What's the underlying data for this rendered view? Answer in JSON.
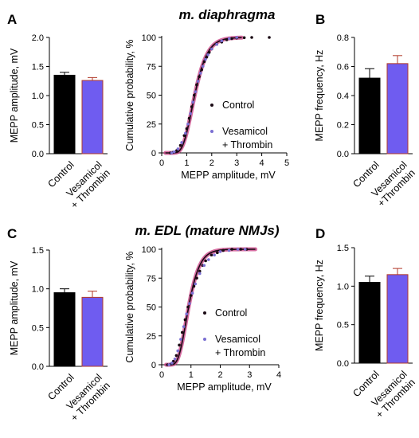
{
  "panels": {
    "A": {
      "letter": "A"
    },
    "B": {
      "letter": "B"
    },
    "C": {
      "letter": "C"
    },
    "D": {
      "letter": "D"
    }
  },
  "colors": {
    "control": "#000000",
    "vt_fill": "#6f5cf0",
    "vt_edge": "#b23a2a",
    "vt_point": "#7a6fd2",
    "control_point": "#1a0a14",
    "cdf_line": "#c83c82"
  },
  "chart_data": [
    {
      "id": "A",
      "type": "bar",
      "categories": [
        "Control",
        "Vesamicol + Thrombin"
      ],
      "category_lines": [
        [
          "Control"
        ],
        [
          "Vesamicol",
          "+ Thrombin"
        ]
      ],
      "values": [
        1.35,
        1.26
      ],
      "errors": [
        0.05,
        0.05
      ],
      "ylabel": "MEPP amplitude, mV",
      "ylim": [
        0,
        2.0
      ],
      "yticks": [
        0,
        0.5,
        1.0,
        1.5,
        2.0
      ],
      "yticklabels": [
        "0.0",
        "0.5",
        "1.0",
        "1.5",
        "2.0"
      ]
    },
    {
      "id": "B",
      "type": "bar",
      "categories": [
        "Control",
        "Vesamicol +Thrombin"
      ],
      "category_lines": [
        [
          "Control"
        ],
        [
          "Vesamicol",
          "+Thrombin"
        ]
      ],
      "values": [
        0.52,
        0.62
      ],
      "errors": [
        0.065,
        0.055
      ],
      "ylabel": "MEPP frequency, Hz",
      "ylim": [
        0,
        0.8
      ],
      "yticks": [
        0,
        0.2,
        0.4,
        0.6,
        0.8
      ],
      "yticklabels": [
        "0.0",
        "0.2",
        "0.4",
        "0.6",
        "0.8"
      ]
    },
    {
      "id": "C",
      "type": "bar",
      "categories": [
        "Control",
        "Vesamicol + Thrombin"
      ],
      "category_lines": [
        [
          "Control"
        ],
        [
          "Vesamicol",
          "+ Thrombin"
        ]
      ],
      "values": [
        0.95,
        0.89
      ],
      "errors": [
        0.05,
        0.08
      ],
      "ylabel": "MEPP amplitude, mV",
      "ylim": [
        0,
        1.5
      ],
      "yticks": [
        0,
        0.5,
        1.0,
        1.5
      ],
      "yticklabels": [
        "0.0",
        "0.5",
        "1.0",
        "1.5"
      ]
    },
    {
      "id": "D",
      "type": "bar",
      "categories": [
        "Control",
        "Vesamicol + Thrombin"
      ],
      "category_lines": [
        [
          "Control"
        ],
        [
          "Vesamicol",
          "+ Thrombin"
        ]
      ],
      "values": [
        1.05,
        1.15
      ],
      "errors": [
        0.08,
        0.08
      ],
      "ylabel": "MEPP frequency, Hz",
      "ylim": [
        0,
        1.5
      ],
      "yticks": [
        0,
        0.5,
        1.0,
        1.5
      ],
      "yticklabels": [
        "0.0",
        "0.5",
        "1.0",
        "1.5"
      ]
    },
    {
      "id": "top-cdf",
      "type": "scatter",
      "title": "m. diaphragma",
      "xlabel": "MEPP amplitude, mV",
      "ylabel": "Cumulative probability, %",
      "xlim": [
        0,
        5
      ],
      "ylim": [
        0,
        100
      ],
      "xticks": [
        0,
        1,
        2,
        3,
        4,
        5
      ],
      "yticks": [
        0,
        25,
        50,
        75,
        100
      ],
      "cdf_fit": {
        "median": 1.32,
        "sigma": 0.3
      },
      "legend_position": "lower-right",
      "series": [
        {
          "name": "Control",
          "color_key": "control_point",
          "x": [
            0.35,
            0.45,
            0.6,
            0.75,
            0.9,
            1.0,
            1.1,
            1.2,
            1.3,
            1.4,
            1.5,
            1.6,
            1.7,
            1.8,
            1.9,
            2.0,
            2.2,
            2.4,
            2.6,
            2.8,
            3.0,
            3.3,
            3.6,
            4.3
          ],
          "y": [
            0,
            0.5,
            2,
            6.5,
            15,
            21,
            30,
            40,
            50,
            59,
            66,
            72,
            79,
            83,
            87,
            90,
            94,
            96,
            98,
            99,
            99.5,
            99.8,
            100,
            100
          ]
        },
        {
          "name": "Vesamicol + Thrombin",
          "color_key": "vt_point",
          "x": [
            0.4,
            0.5,
            0.65,
            0.8,
            0.95,
            1.05,
            1.15,
            1.25,
            1.35,
            1.45,
            1.55,
            1.65,
            1.75,
            1.85,
            2.0,
            2.2,
            2.4,
            2.7,
            3.0
          ],
          "y": [
            0,
            1,
            3.5,
            9,
            17,
            25,
            34,
            44,
            53,
            62,
            69,
            75,
            81,
            85,
            90,
            94,
            97,
            99,
            100
          ]
        }
      ]
    },
    {
      "id": "bottom-cdf",
      "type": "scatter",
      "title": "m. EDL (mature NMJs)",
      "xlabel": "MEPP amplitude, mV",
      "ylabel": "Cumulative probability, %",
      "xlim": [
        0,
        4
      ],
      "ylim": [
        0,
        100
      ],
      "xticks": [
        0,
        1,
        2,
        3,
        4
      ],
      "yticks": [
        0,
        25,
        50,
        75,
        100
      ],
      "cdf_fit": {
        "median": 0.92,
        "sigma": 0.32
      },
      "legend_position": "lower-right",
      "series": [
        {
          "name": "Control",
          "color_key": "control_point",
          "x": [
            0.2,
            0.3,
            0.4,
            0.5,
            0.6,
            0.7,
            0.8,
            0.9,
            1.0,
            1.1,
            1.2,
            1.3,
            1.4,
            1.5,
            1.7,
            1.9,
            2.1,
            2.4,
            2.7,
            2.9
          ],
          "y": [
            0,
            0.5,
            3,
            8,
            17,
            28,
            39,
            50,
            60,
            68,
            75,
            81,
            86,
            90,
            95,
            97,
            99,
            100,
            100,
            100
          ]
        },
        {
          "name": "Vesamicol + Thrombin",
          "color_key": "vt_point",
          "x": [
            0.25,
            0.35,
            0.45,
            0.55,
            0.65,
            0.75,
            0.85,
            0.95,
            1.05,
            1.15,
            1.3,
            1.45,
            1.6,
            1.8,
            2.0,
            2.3,
            2.6,
            2.85
          ],
          "y": [
            0,
            1.5,
            5,
            12,
            22,
            33,
            44,
            53,
            62,
            70,
            79,
            86,
            91,
            95,
            98,
            99,
            100,
            100
          ]
        }
      ]
    }
  ]
}
